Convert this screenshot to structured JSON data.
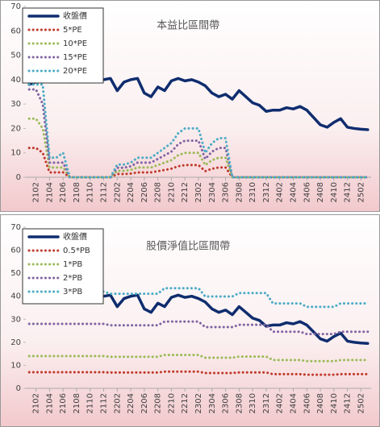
{
  "chart_data": [
    {
      "type": "line",
      "title": "本益比區間帶",
      "legend": "upper left",
      "categories": [
        null,
        "2102",
        null,
        "2104",
        null,
        "2106",
        null,
        "2108",
        null,
        "2110",
        null,
        "2112",
        null,
        "2202",
        null,
        "2204",
        null,
        "2206",
        null,
        "2208",
        null,
        "2210",
        null,
        "2212",
        null,
        "2302",
        null,
        "2304",
        null,
        "2306",
        null,
        "2308",
        null,
        "2310",
        null,
        "2312",
        null,
        "2402",
        null,
        "2404",
        null,
        "2406",
        null,
        "2408",
        null,
        "2410",
        null,
        "2412",
        null,
        "2502",
        null
      ],
      "ylim": [
        0,
        70
      ],
      "yticks": [
        0,
        10,
        20,
        30,
        40,
        50,
        60,
        70
      ],
      "series": [
        {
          "name": "收盤價",
          "color": "#0f2d6e",
          "values": [
            38,
            39,
            40,
            40,
            41,
            40,
            39,
            40,
            40,
            40,
            40,
            40,
            40.5,
            35.5,
            39,
            40,
            40.5,
            34.5,
            33,
            37,
            35.5,
            39.5,
            40.5,
            39.5,
            40,
            39,
            37.5,
            34.5,
            33,
            34,
            32,
            35.5,
            33,
            30.5,
            29.5,
            27,
            27.5,
            27.5,
            28.5,
            28,
            29,
            27.5,
            24.5,
            21.5,
            20.5,
            22.5,
            24,
            20.5,
            20,
            19.7,
            19.5
          ]
        },
        {
          "name": "5*PE",
          "color": "#c0392b",
          "values": [
            12,
            12,
            10,
            2,
            2,
            2,
            0,
            0,
            0,
            0,
            0,
            0,
            0,
            1.3,
            1.3,
            1.5,
            2,
            2,
            2,
            2.5,
            3,
            3.5,
            4.5,
            5,
            5,
            5,
            2.5,
            3.5,
            4,
            4,
            0,
            0,
            0,
            0,
            0,
            0,
            0,
            0,
            0,
            0,
            0,
            0,
            0,
            0,
            0,
            0,
            0,
            0,
            0,
            0,
            0
          ]
        },
        {
          "name": "10*PE",
          "color": "#9bbb59",
          "values": [
            24,
            24,
            20,
            4,
            4,
            4,
            0,
            0,
            0,
            0,
            0,
            0,
            0,
            2.6,
            2.6,
            3,
            4,
            4,
            4,
            5,
            6,
            7,
            9,
            10,
            10,
            10,
            5,
            7,
            8,
            8,
            0,
            0,
            0,
            0,
            0,
            0,
            0,
            0,
            0,
            0,
            0,
            0,
            0,
            0,
            0,
            0,
            0,
            0,
            0,
            0,
            0
          ]
        },
        {
          "name": "15*PE",
          "color": "#8064a2",
          "values": [
            36,
            36,
            30,
            6,
            6,
            6,
            0,
            0,
            0,
            0,
            0,
            0,
            0,
            3.9,
            3.9,
            4.5,
            6,
            6,
            6,
            7.5,
            9,
            10.5,
            13.5,
            15,
            15,
            15,
            7.5,
            10.5,
            12,
            12,
            0,
            0,
            0,
            0,
            0,
            0,
            0,
            0,
            0,
            0,
            0,
            0,
            0,
            0,
            0,
            0,
            0,
            0,
            0,
            0,
            0
          ]
        },
        {
          "name": "20*PE",
          "color": "#4bacc6",
          "values": [
            38,
            38,
            38,
            8,
            8,
            10,
            0,
            0,
            0,
            0,
            0,
            0,
            0,
            5.2,
            5.2,
            6,
            8,
            8,
            8,
            10,
            12,
            14,
            18,
            20,
            20,
            20,
            10,
            14,
            16,
            16,
            0,
            0,
            0,
            0,
            0,
            0,
            0,
            0,
            0,
            0,
            0,
            0,
            0,
            0,
            0,
            0,
            0,
            0,
            0,
            0,
            0
          ]
        }
      ]
    },
    {
      "type": "line",
      "title": "股價淨值比區間帶",
      "legend": "upper left",
      "categories": [
        null,
        "2102",
        null,
        "2104",
        null,
        "2106",
        null,
        "2108",
        null,
        "2110",
        null,
        "2112",
        null,
        "2202",
        null,
        "2204",
        null,
        "2206",
        null,
        "2208",
        null,
        "2210",
        null,
        "2212",
        null,
        "2302",
        null,
        "2304",
        null,
        "2306",
        null,
        "2308",
        null,
        "2310",
        null,
        "2312",
        null,
        "2402",
        null,
        "2404",
        null,
        "2406",
        null,
        "2408",
        null,
        "2410",
        null,
        "2412",
        null,
        "2502",
        null
      ],
      "ylim": [
        0,
        70
      ],
      "yticks": [
        0,
        10,
        20,
        30,
        40,
        50,
        60,
        70
      ],
      "series": [
        {
          "name": "收盤價",
          "color": "#0f2d6e",
          "values": [
            38,
            39,
            40,
            40,
            41,
            40,
            39,
            40,
            40,
            40,
            40,
            40,
            40.5,
            35.5,
            39,
            40,
            40.5,
            34.5,
            33,
            37,
            35.5,
            39.5,
            40.5,
            39.5,
            40,
            39,
            37.5,
            34.5,
            33,
            34,
            32,
            35.5,
            33,
            30.5,
            29.5,
            27,
            27.5,
            27.5,
            28.5,
            28,
            29,
            27.5,
            24.5,
            21.5,
            20.5,
            22.5,
            24,
            20.5,
            20,
            19.7,
            19.5
          ]
        },
        {
          "name": "0.5*PB",
          "color": "#c0392b",
          "values": [
            7,
            7,
            7,
            7,
            7,
            7,
            7,
            7,
            7,
            7,
            7,
            7,
            6.85,
            6.85,
            6.85,
            6.85,
            6.85,
            6.85,
            6.85,
            6.85,
            7.25,
            7.25,
            7.25,
            7.25,
            7.25,
            7.25,
            6.65,
            6.65,
            6.65,
            6.65,
            6.65,
            6.9,
            6.9,
            6.9,
            6.9,
            6.9,
            6.15,
            6.15,
            6.15,
            6.15,
            6.15,
            5.9,
            5.9,
            5.9,
            5.9,
            5.9,
            6.15,
            6.15,
            6.15,
            6.15,
            6.15
          ]
        },
        {
          "name": "1*PB",
          "color": "#9bbb59",
          "values": [
            14,
            14,
            14,
            14,
            14,
            14,
            14,
            14,
            14,
            14,
            14,
            14,
            13.7,
            13.7,
            13.7,
            13.7,
            13.7,
            13.7,
            13.7,
            13.7,
            14.5,
            14.5,
            14.5,
            14.5,
            14.5,
            14.5,
            13.3,
            13.3,
            13.3,
            13.3,
            13.3,
            13.8,
            13.8,
            13.8,
            13.8,
            13.8,
            12.3,
            12.3,
            12.3,
            12.3,
            12.3,
            11.8,
            11.8,
            11.8,
            11.8,
            11.8,
            12.3,
            12.3,
            12.3,
            12.3,
            12.3
          ]
        },
        {
          "name": "2*PB",
          "color": "#8064a2",
          "values": [
            28,
            28,
            28,
            28,
            28,
            28,
            28,
            28,
            28,
            28,
            28,
            28,
            27.4,
            27.4,
            27.4,
            27.4,
            27.4,
            27.4,
            27.4,
            27.4,
            29,
            29,
            29,
            29,
            29,
            29,
            26.6,
            26.6,
            26.6,
            26.6,
            26.6,
            27.6,
            27.6,
            27.6,
            27.6,
            27.6,
            24.6,
            24.6,
            24.6,
            24.6,
            24.6,
            23.6,
            23.6,
            23.6,
            23.6,
            23.6,
            24.6,
            24.6,
            24.6,
            24.6,
            24.6
          ]
        },
        {
          "name": "3*PB",
          "color": "#4bacc6",
          "values": [
            42,
            42,
            42,
            42,
            42,
            42,
            42,
            42,
            42,
            42,
            42,
            42,
            41.1,
            41.1,
            41.1,
            41.1,
            41.1,
            41.1,
            41.1,
            41.1,
            43.5,
            43.5,
            43.5,
            43.5,
            43.5,
            43.5,
            39.9,
            39.9,
            39.9,
            39.9,
            39.9,
            41.4,
            41.4,
            41.4,
            41.4,
            41.4,
            36.9,
            36.9,
            36.9,
            36.9,
            36.9,
            35.4,
            35.4,
            35.4,
            35.4,
            35.4,
            36.9,
            36.9,
            36.9,
            36.9,
            36.9
          ]
        }
      ]
    }
  ]
}
